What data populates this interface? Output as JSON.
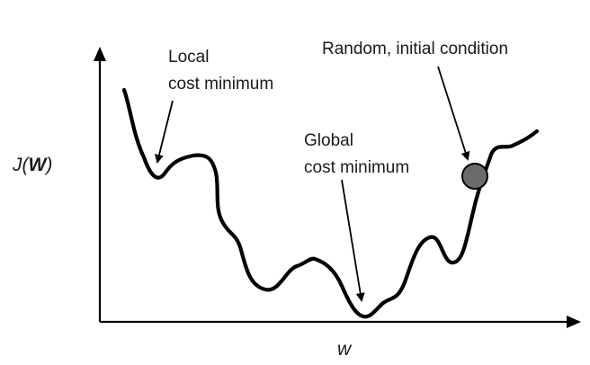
{
  "axes": {
    "y_label_prefix": "J(",
    "y_label_var": "W",
    "y_label_suffix": ")",
    "x_label": "w"
  },
  "annotations": {
    "local": {
      "line1": "Local",
      "line2": "cost minimum"
    },
    "global": {
      "line1": "Global",
      "line2": "cost minimum"
    },
    "initial": {
      "line1": "Random, initial condition"
    }
  },
  "colors": {
    "ink": "#000000",
    "ball_fill": "#6b6b6b",
    "text": "#1a1a1a"
  }
}
